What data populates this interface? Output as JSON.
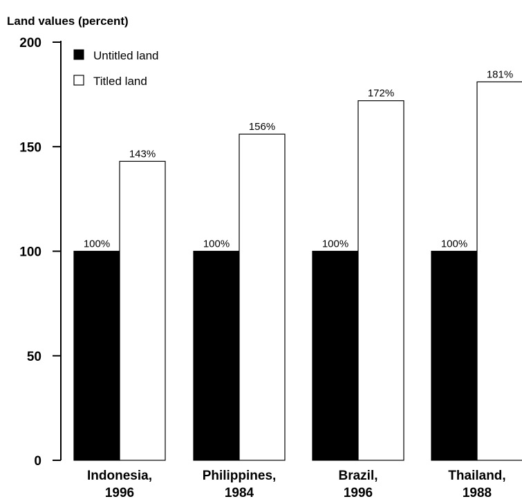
{
  "chart_data": {
    "type": "bar",
    "ylabel": "Land values (percent)",
    "ylim": [
      0,
      200
    ],
    "yticks": [
      "200",
      "150",
      "100",
      "50",
      "0"
    ],
    "ytick_values": [
      200,
      150,
      100,
      50,
      0
    ],
    "categories": [
      [
        "Indonesia,",
        "1996"
      ],
      [
        "Philippines,",
        "1984"
      ],
      [
        "Brazil,",
        "1996"
      ],
      [
        "Thailand,",
        "1988"
      ]
    ],
    "series": [
      {
        "name": "Untitled land",
        "values": [
          100,
          100,
          100,
          100
        ],
        "labels": [
          "100%",
          "100%",
          "100%",
          "100%"
        ],
        "color": "#000000"
      },
      {
        "name": "Titled land",
        "values": [
          143,
          156,
          172,
          181
        ],
        "labels": [
          "143%",
          "156%",
          "172%",
          "181%"
        ],
        "color": "#ffffff"
      }
    ],
    "legend": "top-left",
    "grid": false
  }
}
